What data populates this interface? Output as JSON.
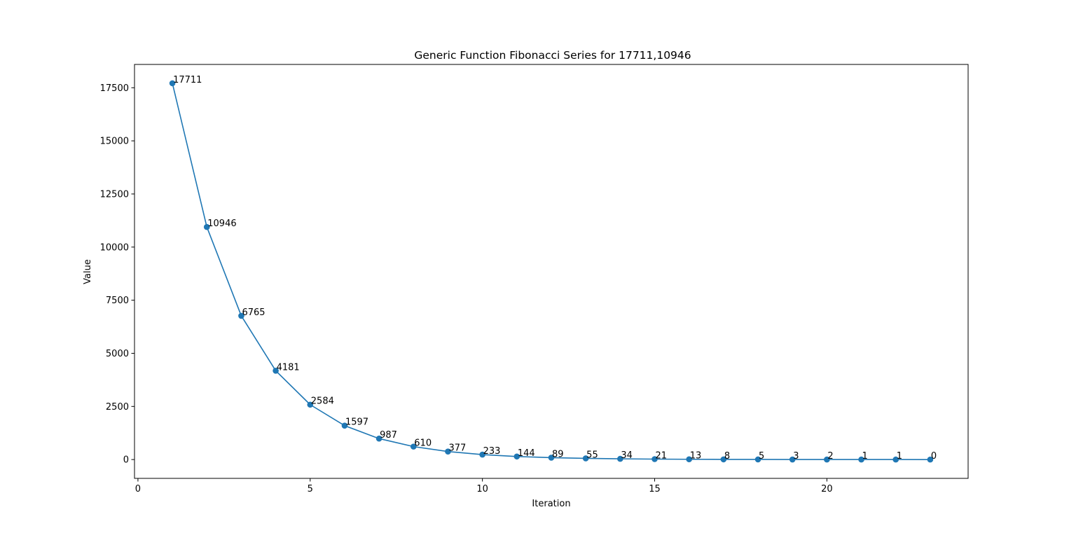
{
  "chart_data": {
    "type": "line",
    "title": "Generic Function Fibonacci Series for 17711,10946",
    "xlabel": "Iteration",
    "ylabel": "Value",
    "xlim": [
      -0.1,
      24.1
    ],
    "ylim": [
      -885.55,
      18596.55
    ],
    "xticks": [
      0,
      5,
      10,
      15,
      20
    ],
    "yticks": [
      0,
      2500,
      5000,
      7500,
      10000,
      12500,
      15000,
      17500
    ],
    "grid": false,
    "line_color": "#1f77b4",
    "marker": "circle",
    "x": [
      1,
      2,
      3,
      4,
      5,
      6,
      7,
      8,
      9,
      10,
      11,
      12,
      13,
      14,
      15,
      16,
      17,
      18,
      19,
      20,
      21,
      22,
      23
    ],
    "values": [
      17711,
      10946,
      6765,
      4181,
      2584,
      1597,
      987,
      610,
      377,
      233,
      144,
      89,
      55,
      34,
      21,
      13,
      8,
      5,
      3,
      2,
      1,
      1,
      0
    ],
    "point_labels": [
      "17711",
      "10946",
      "6765",
      "4181",
      "2584",
      "1597",
      "987",
      "610",
      "377",
      "233",
      "144",
      "89",
      "55",
      "34",
      "21",
      "13",
      "8",
      "5",
      "3",
      "2",
      "1",
      "1",
      "0"
    ]
  }
}
